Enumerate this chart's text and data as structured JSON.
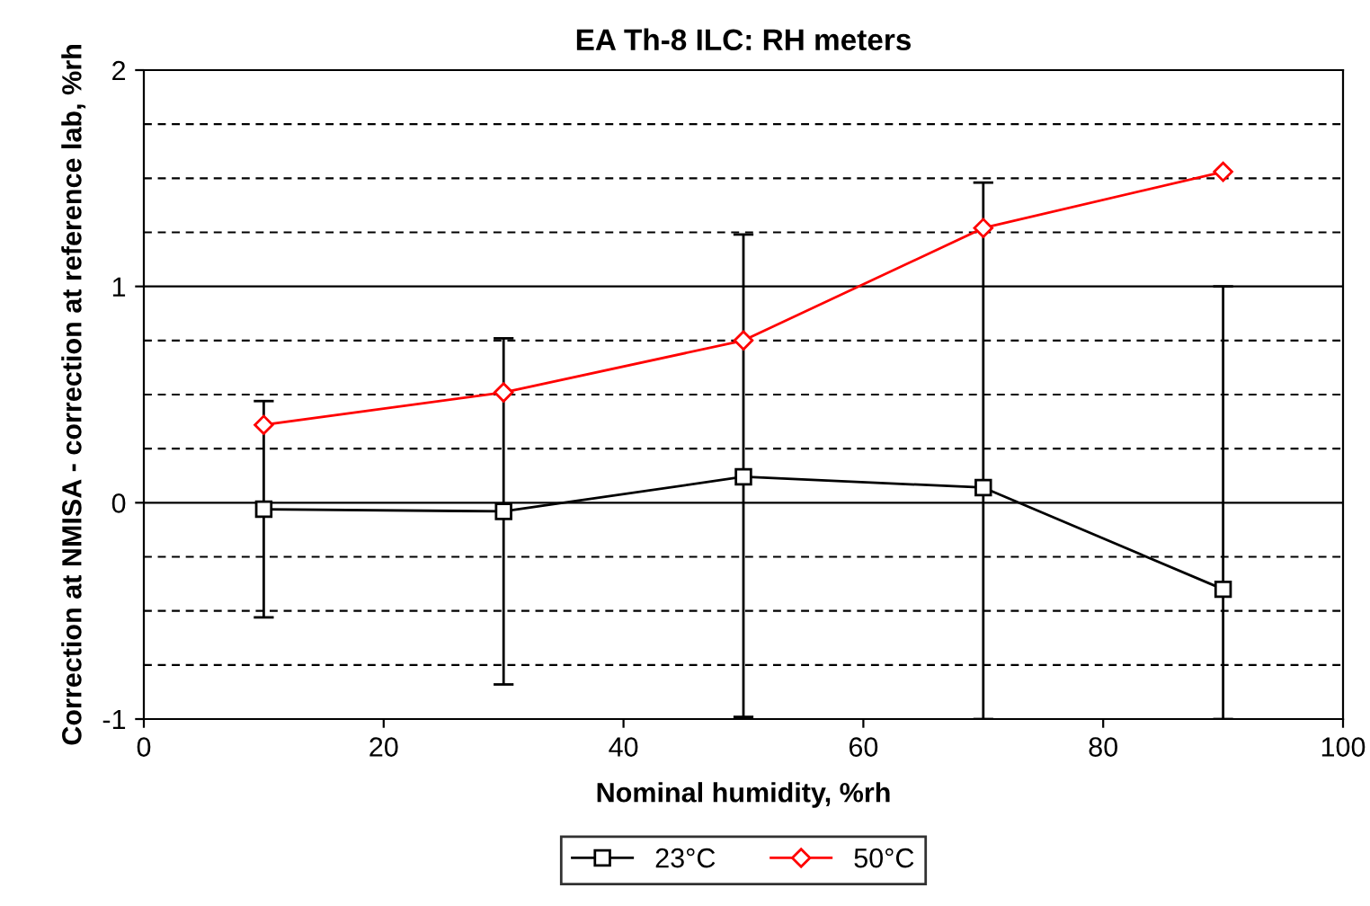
{
  "chart_data": {
    "type": "line",
    "title": "EA Th-8 ILC: RH meters",
    "xlabel": "Nominal humidity, %rh",
    "ylabel": "Correction at NMISA - correction at reference lab, %rh",
    "x": [
      10,
      30,
      50,
      70,
      90
    ],
    "series": [
      {
        "name": "23°C",
        "color": "#000000",
        "marker": "square",
        "values": [
          -0.03,
          -0.04,
          0.12,
          0.07,
          -0.4
        ],
        "errors": [
          0.5,
          0.8,
          [
            -0.99,
            1.24
          ],
          [
            -1,
            1.48
          ],
          [
            -1,
            1.0
          ]
        ]
      },
      {
        "name": "50°C",
        "color": "#ff0000",
        "marker": "diamond",
        "values": [
          0.36,
          0.51,
          0.75,
          1.27,
          1.53
        ]
      }
    ],
    "xlim": [
      0,
      100
    ],
    "xticks": [
      0,
      20,
      40,
      60,
      80,
      100
    ],
    "ylim": [
      -1,
      2
    ],
    "yticks": [
      -1,
      0,
      1,
      2
    ],
    "grid": "y",
    "legend": "bottom",
    "line_style": "solid"
  }
}
